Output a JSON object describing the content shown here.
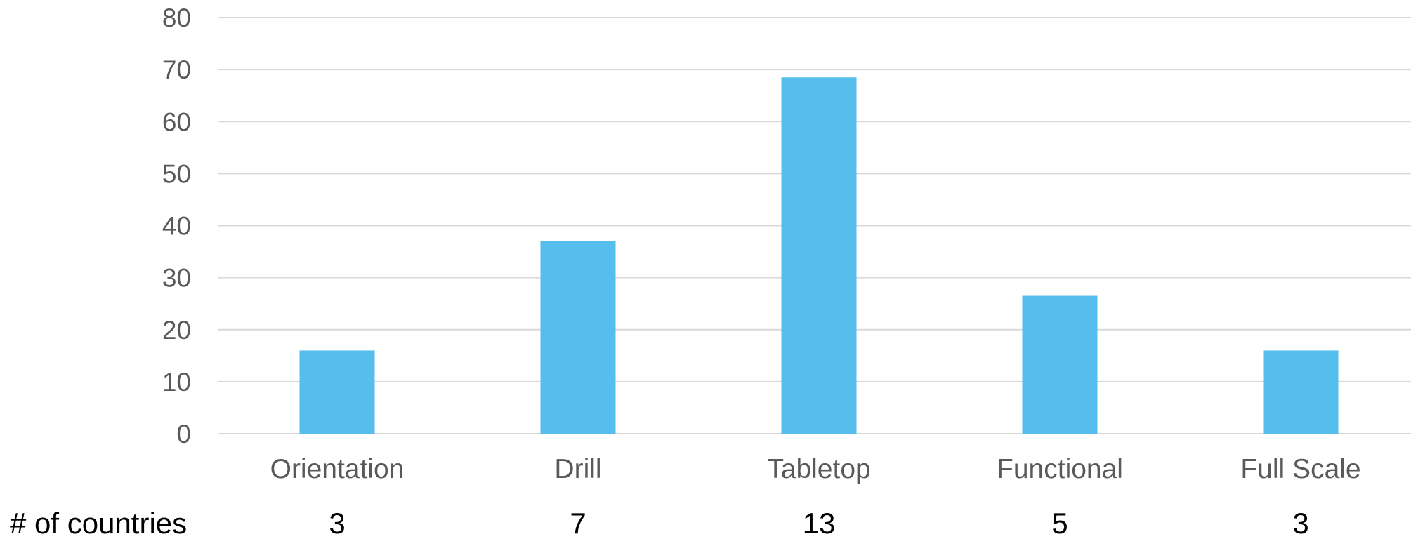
{
  "chart_data": {
    "type": "bar",
    "categories": [
      "Orientation",
      "Drill",
      "Tabletop",
      "Functional",
      "Full Scale"
    ],
    "values": [
      16,
      37,
      68.5,
      26.5,
      16
    ],
    "ylim": [
      0,
      80
    ],
    "yticks": [
      "0",
      "10",
      "20",
      "30",
      "40",
      "50",
      "60",
      "70",
      "80"
    ],
    "grid": true,
    "bar_color": "#56BEEC",
    "grid_color": "#D9D9D9",
    "data_table": {
      "row_label": "# of countries",
      "values": [
        "3",
        "7",
        "13",
        "5",
        "3"
      ]
    }
  }
}
